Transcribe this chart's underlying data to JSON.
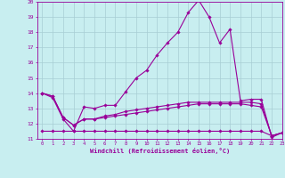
{
  "xlabel": "Windchill (Refroidissement éolien,°C)",
  "bg_color": "#c8eef0",
  "grid_color": "#a8cdd4",
  "line_color": "#990099",
  "ylim": [
    11,
    20
  ],
  "xlim": [
    -0.5,
    23
  ],
  "yticks": [
    11,
    12,
    13,
    14,
    15,
    16,
    17,
    18,
    19,
    20
  ],
  "xticks": [
    0,
    1,
    2,
    3,
    4,
    5,
    6,
    7,
    8,
    9,
    10,
    11,
    12,
    13,
    14,
    15,
    16,
    17,
    18,
    19,
    20,
    21,
    22,
    23
  ],
  "line1_x": [
    0,
    1,
    2,
    3,
    4,
    5,
    6,
    7,
    8,
    9,
    10,
    11,
    12,
    13,
    14,
    15,
    16,
    17,
    18,
    19,
    20,
    21,
    22,
    23
  ],
  "line1_y": [
    14.0,
    13.7,
    12.3,
    11.5,
    13.1,
    13.0,
    13.2,
    13.2,
    14.1,
    15.0,
    15.5,
    16.5,
    17.3,
    18.0,
    19.3,
    20.1,
    19.0,
    17.3,
    18.2,
    13.5,
    13.6,
    13.6,
    11.1,
    11.4
  ],
  "line2_x": [
    0,
    1,
    2,
    3,
    4,
    5,
    6,
    7,
    8,
    9,
    10,
    11,
    12,
    13,
    14,
    15,
    16,
    17,
    18,
    19,
    20,
    21,
    22,
    23
  ],
  "line2_y": [
    14.0,
    13.8,
    12.4,
    11.9,
    12.3,
    12.3,
    12.5,
    12.6,
    12.8,
    12.9,
    13.0,
    13.1,
    13.2,
    13.3,
    13.4,
    13.4,
    13.4,
    13.4,
    13.4,
    13.4,
    13.4,
    13.3,
    11.2,
    11.4
  ],
  "line3_x": [
    0,
    1,
    2,
    3,
    4,
    5,
    6,
    7,
    8,
    9,
    10,
    11,
    12,
    13,
    14,
    15,
    16,
    17,
    18,
    19,
    20,
    21,
    22,
    23
  ],
  "line3_y": [
    14.0,
    13.8,
    12.4,
    11.9,
    12.3,
    12.3,
    12.4,
    12.5,
    12.6,
    12.7,
    12.8,
    12.9,
    13.0,
    13.1,
    13.2,
    13.3,
    13.3,
    13.3,
    13.3,
    13.3,
    13.2,
    13.1,
    11.2,
    11.4
  ],
  "line4_x": [
    0,
    1,
    2,
    3,
    4,
    5,
    6,
    7,
    8,
    9,
    10,
    11,
    12,
    13,
    14,
    15,
    16,
    17,
    18,
    19,
    20,
    21,
    22,
    23
  ],
  "line4_y": [
    11.5,
    11.5,
    11.5,
    11.5,
    11.5,
    11.5,
    11.5,
    11.5,
    11.5,
    11.5,
    11.5,
    11.5,
    11.5,
    11.5,
    11.5,
    11.5,
    11.5,
    11.5,
    11.5,
    11.5,
    11.5,
    11.5,
    11.2,
    11.4
  ]
}
